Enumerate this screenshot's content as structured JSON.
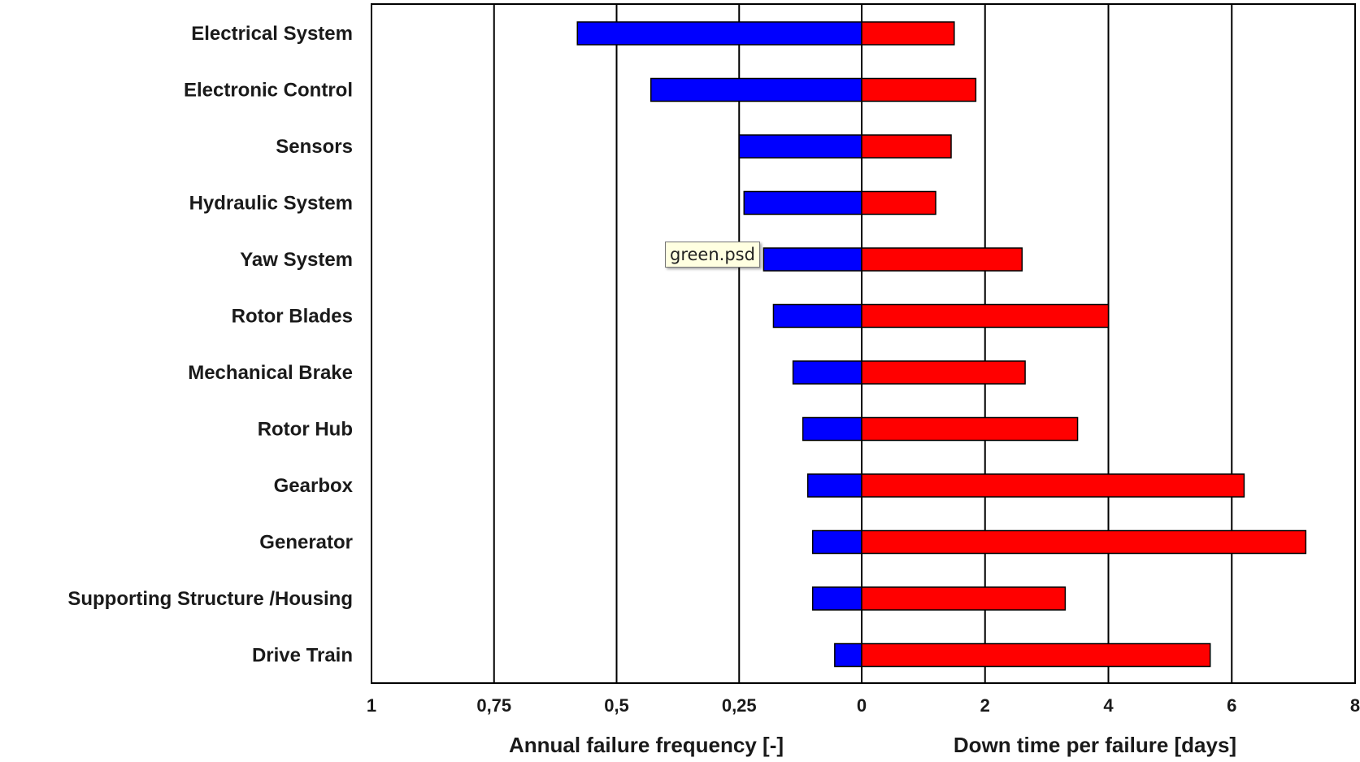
{
  "chart_data": {
    "type": "bar",
    "categories": [
      "Electrical System",
      "Electronic Control",
      "Sensors",
      "Hydraulic System",
      "Yaw System",
      "Rotor Blades",
      "Mechanical Brake",
      "Rotor Hub",
      "Gearbox",
      "Generator",
      "Supporting Structure /Housing",
      "Drive Train"
    ],
    "series": [
      {
        "name": "Annual failure frequency [-]",
        "color": "#0000ff",
        "values": [
          0.58,
          0.43,
          0.25,
          0.24,
          0.2,
          0.18,
          0.14,
          0.12,
          0.11,
          0.1,
          0.1,
          0.055
        ]
      },
      {
        "name": "Down time per failure [days]",
        "color": "#ff0000",
        "values": [
          1.5,
          1.85,
          1.45,
          1.2,
          2.6,
          4.0,
          2.65,
          3.5,
          6.2,
          7.2,
          3.3,
          5.65
        ]
      }
    ],
    "left_axis": {
      "title": "Annual failure frequency [-]",
      "range": [
        1,
        0
      ],
      "ticks": [
        {
          "value": 1,
          "label": "1"
        },
        {
          "value": 0.75,
          "label": "0,75"
        },
        {
          "value": 0.5,
          "label": "0,5"
        },
        {
          "value": 0.25,
          "label": "0,25"
        },
        {
          "value": 0,
          "label": "0"
        }
      ]
    },
    "right_axis": {
      "title": "Down time per failure [days]",
      "range": [
        0,
        8
      ],
      "ticks": [
        {
          "value": 2,
          "label": "2"
        },
        {
          "value": 4,
          "label": "4"
        },
        {
          "value": 6,
          "label": "6"
        },
        {
          "value": 8,
          "label": "8"
        }
      ]
    },
    "grid": "vertical",
    "legend": "none"
  },
  "tooltip": {
    "text": "green.psd"
  }
}
